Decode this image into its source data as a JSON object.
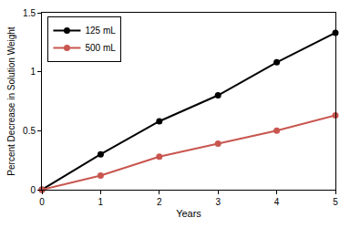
{
  "chart_data": {
    "type": "line",
    "x_label": "Years",
    "y_label": "Percent Decrease in Solution Weight",
    "x": [
      0,
      1,
      2,
      3,
      4,
      5
    ],
    "series": [
      {
        "name": "125 mL",
        "color": "#000000",
        "values": [
          0,
          0.3,
          0.58,
          0.8,
          1.08,
          1.33
        ]
      },
      {
        "name": "500 mL",
        "color": "#c8564f",
        "values": [
          0,
          0.12,
          0.28,
          0.39,
          0.5,
          0.63
        ]
      }
    ],
    "xlim": [
      0,
      5
    ],
    "xticks": [
      0,
      1,
      2,
      3,
      4,
      5
    ],
    "ylim": [
      0,
      1.5
    ],
    "yticks": [
      0,
      0.5,
      1,
      1.5
    ],
    "grid": false,
    "legend": "top-left",
    "marker": "circle",
    "line_style": "solid"
  }
}
